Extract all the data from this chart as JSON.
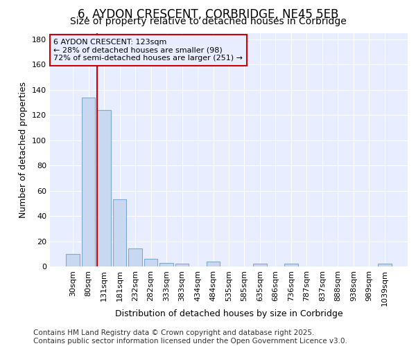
{
  "title": "6, AYDON CRESCENT, CORBRIDGE, NE45 5EB",
  "subtitle": "Size of property relative to detached houses in Corbridge",
  "xlabel": "Distribution of detached houses by size in Corbridge",
  "ylabel": "Number of detached properties",
  "footer": "Contains HM Land Registry data © Crown copyright and database right 2025.\nContains public sector information licensed under the Open Government Licence v3.0.",
  "categories": [
    "30sqm",
    "80sqm",
    "131sqm",
    "181sqm",
    "232sqm",
    "282sqm",
    "333sqm",
    "383sqm",
    "434sqm",
    "484sqm",
    "535sqm",
    "585sqm",
    "635sqm",
    "686sqm",
    "736sqm",
    "787sqm",
    "837sqm",
    "888sqm",
    "938sqm",
    "989sqm",
    "1039sqm"
  ],
  "values": [
    10,
    134,
    124,
    53,
    14,
    6,
    3,
    2,
    0,
    4,
    0,
    0,
    2,
    0,
    2,
    0,
    0,
    0,
    0,
    0,
    2
  ],
  "bar_color": "#c8d8f0",
  "bar_edge_color": "#7baad4",
  "vline_color": "#cc0000",
  "annotation_text": "6 AYDON CRESCENT: 123sqm\n← 28% of detached houses are smaller (98)\n72% of semi-detached houses are larger (251) →",
  "annotation_box_color": "#cc0000",
  "ylim": [
    0,
    185
  ],
  "yticks": [
    0,
    20,
    40,
    60,
    80,
    100,
    120,
    140,
    160,
    180
  ],
  "background_color": "#ffffff",
  "plot_bg_color": "#e8eeff",
  "grid_color": "#ffffff",
  "title_fontsize": 12,
  "subtitle_fontsize": 10,
  "axis_fontsize": 9,
  "tick_fontsize": 8,
  "footer_fontsize": 7.5
}
